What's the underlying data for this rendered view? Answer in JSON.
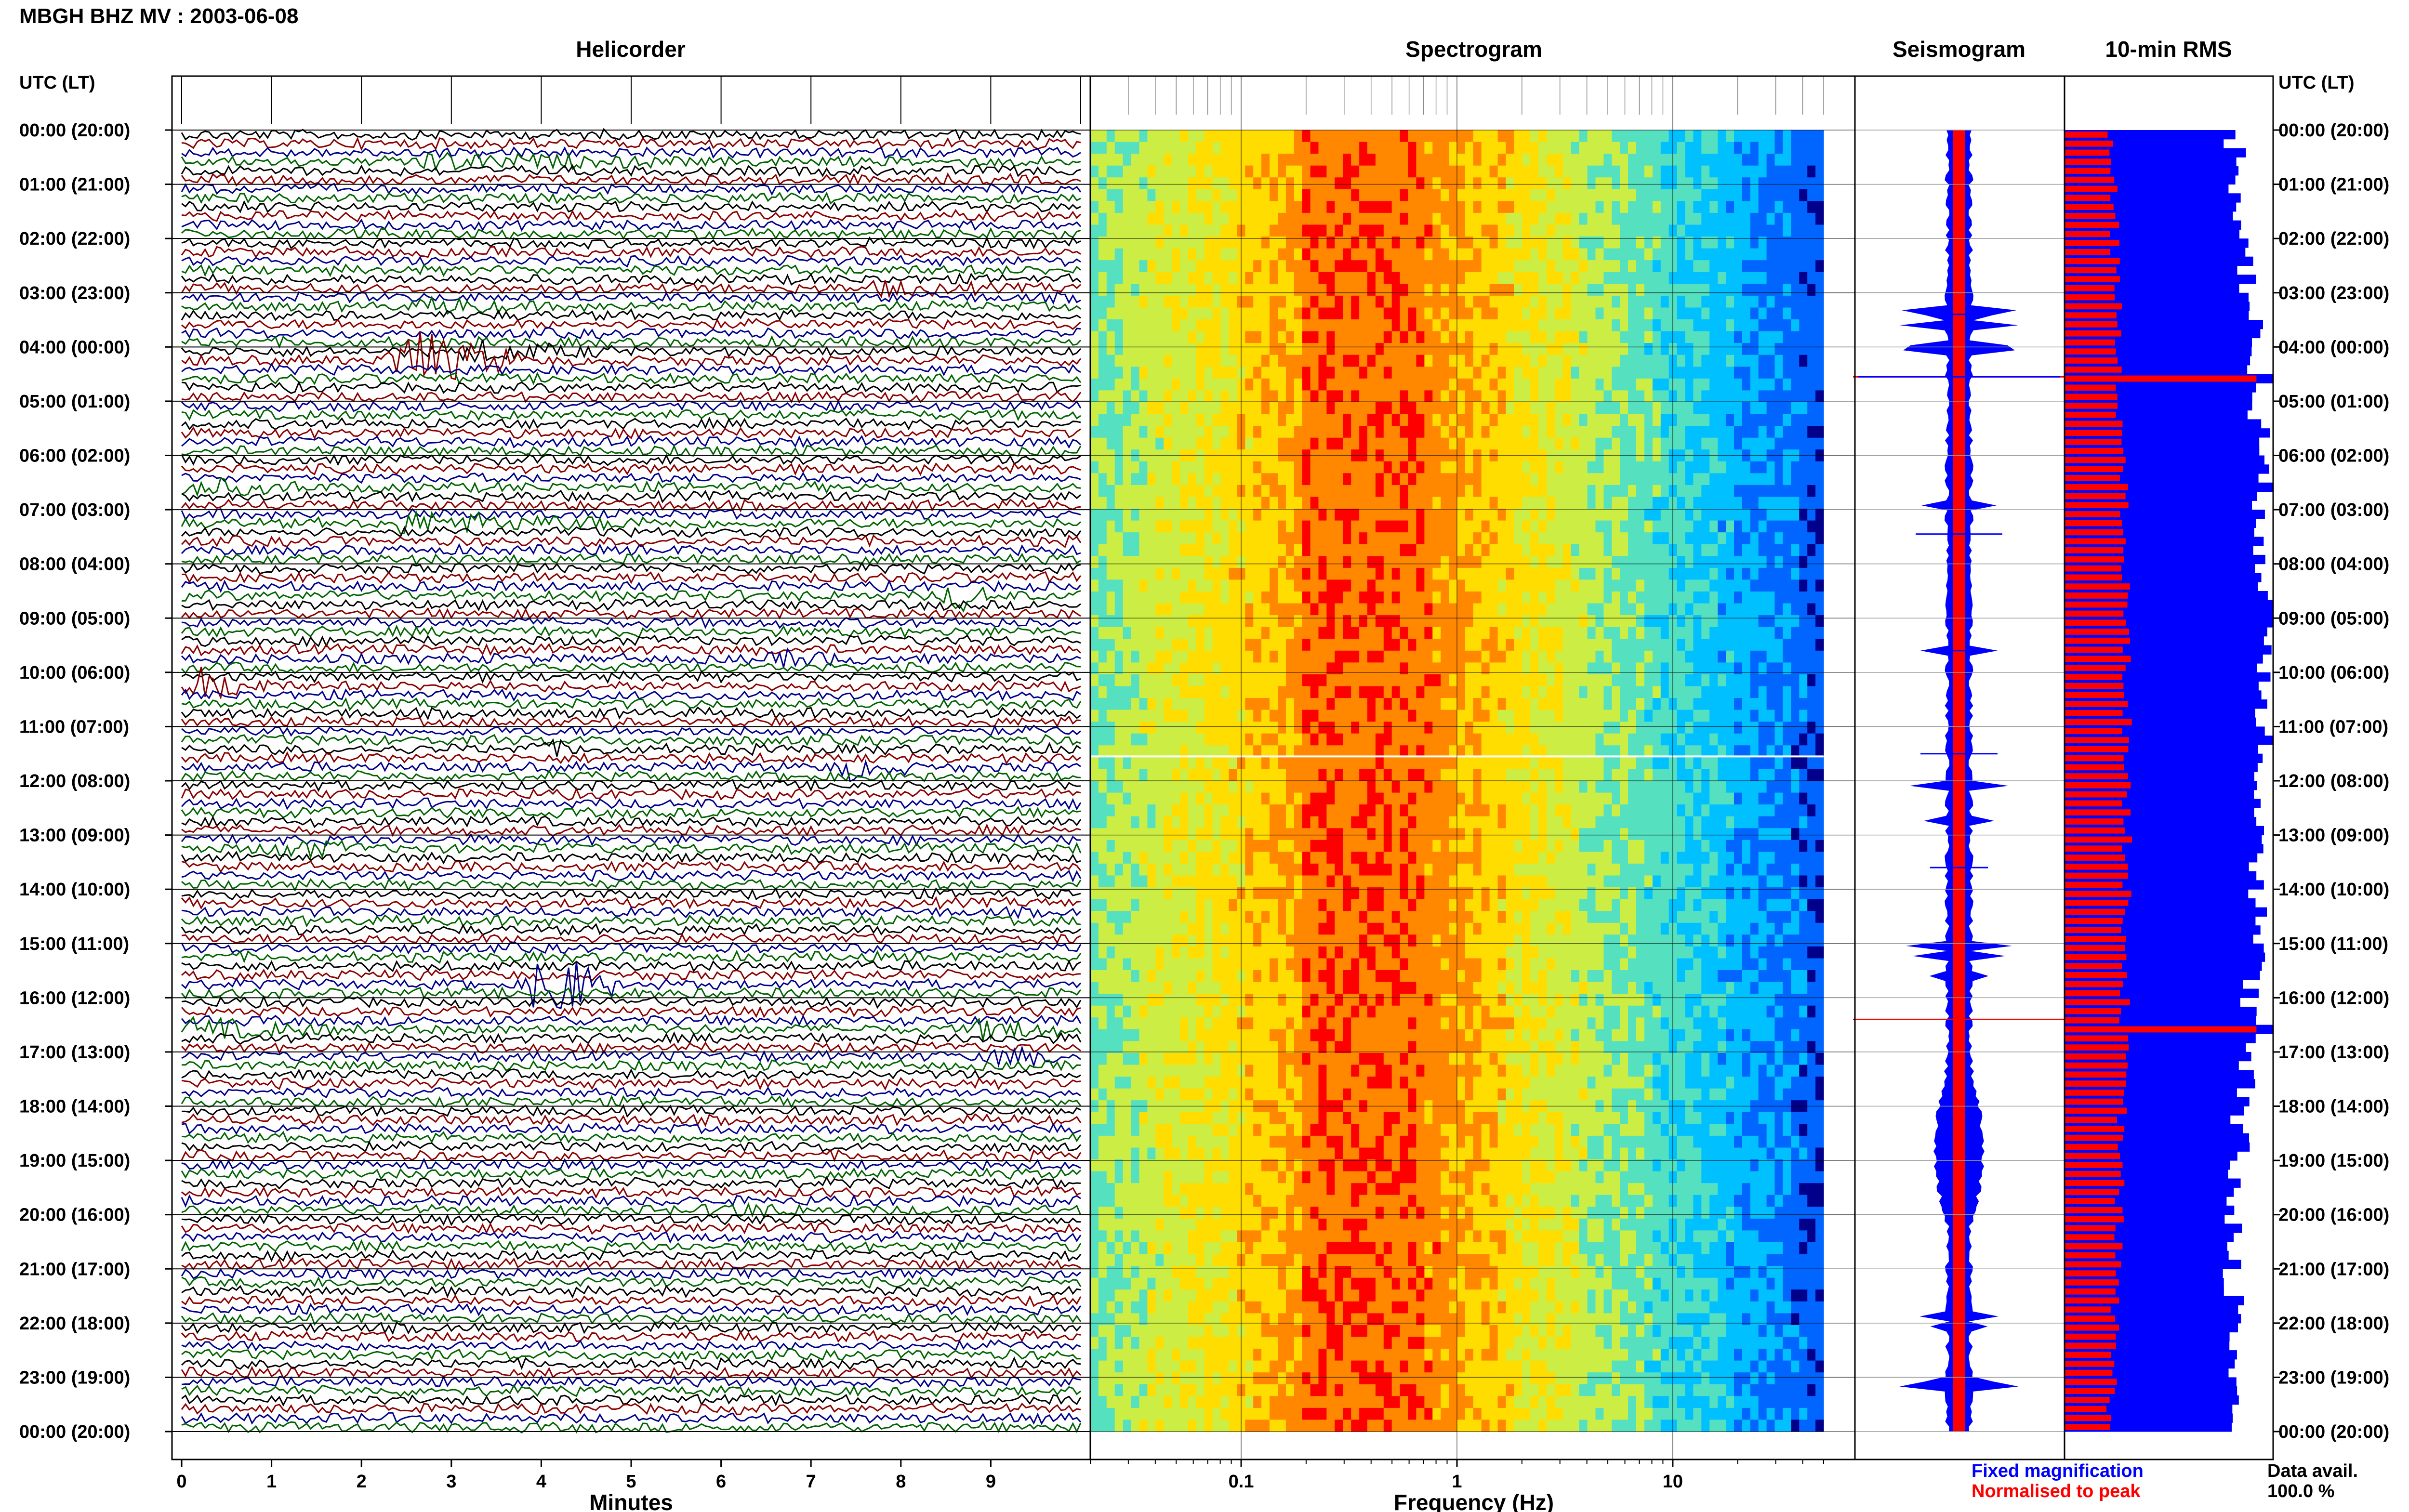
{
  "header": {
    "title": "MBGH BHZ MV : 2003-06-08"
  },
  "panels": {
    "helicorder": "Helicorder",
    "spectrogram": "Spectrogram",
    "seismogram": "Seismogram",
    "rms": "10-min RMS"
  },
  "axis_labels": {
    "left_time": "UTC (LT)",
    "right_time": "UTC (LT)",
    "helicorder_x": "Minutes",
    "spectrogram_x": "Frequency (Hz)"
  },
  "legend": {
    "fixed": "Fixed magnification",
    "normalised": "Normalised to peak",
    "fixed_color": "#0000ff",
    "normalised_color": "#ff0000"
  },
  "data_avail": {
    "label": "Data avail.",
    "value": "100.0 %"
  },
  "colors": {
    "black": "#000000",
    "red": "#8b0000",
    "blue": "#00008b",
    "green": "#006400"
  },
  "chart_data": {
    "type": "heatmap",
    "time_labels": [
      "00:00 (20:00)",
      "01:00 (21:00)",
      "02:00 (22:00)",
      "03:00 (23:00)",
      "04:00 (00:00)",
      "05:00 (01:00)",
      "06:00 (02:00)",
      "07:00 (03:00)",
      "08:00 (04:00)",
      "09:00 (05:00)",
      "10:00 (06:00)",
      "11:00 (07:00)",
      "12:00 (08:00)",
      "13:00 (09:00)",
      "14:00 (10:00)",
      "15:00 (11:00)",
      "16:00 (12:00)",
      "17:00 (13:00)",
      "18:00 (14:00)",
      "19:00 (15:00)",
      "20:00 (16:00)",
      "21:00 (17:00)",
      "22:00 (18:00)",
      "23:00 (19:00)",
      "00:00 (20:00)"
    ],
    "helicorder": {
      "xlabel": "Minutes",
      "xlim": [
        0,
        10
      ],
      "x_ticks": [
        0,
        1,
        2,
        3,
        4,
        5,
        6,
        7,
        8,
        9
      ],
      "rows": 144,
      "trace_colors_cycle": [
        "black",
        "red",
        "blue",
        "green"
      ],
      "events": [
        {
          "hour": 0.6,
          "minute": 2.5,
          "dur": 3.0,
          "amp": 0.6,
          "color": "green"
        },
        {
          "hour": 3.2,
          "minute": 2.7,
          "dur": 1.0,
          "amp": 0.6,
          "color": "black"
        },
        {
          "hour": 2.95,
          "minute": 7.7,
          "dur": 1.2,
          "amp": 0.5,
          "color": "blue"
        },
        {
          "hour": 4.25,
          "minute": 2.35,
          "dur": 1.4,
          "amp": 3.2,
          "color": "green"
        },
        {
          "hour": 4.1,
          "minute": 3.1,
          "dur": 1.8,
          "amp": 0.8,
          "color": "red"
        },
        {
          "hour": 6.6,
          "minute": 0.0,
          "dur": 1.4,
          "amp": 0.7,
          "color": "black"
        },
        {
          "hour": 7.2,
          "minute": 2.3,
          "dur": 3.5,
          "amp": 0.8,
          "color": "black"
        },
        {
          "hour": 8.6,
          "minute": 8.5,
          "dur": 0.6,
          "amp": 1.2,
          "color": "black"
        },
        {
          "hour": 9.8,
          "minute": 6.6,
          "dur": 1.0,
          "amp": 0.6,
          "color": "green"
        },
        {
          "hour": 10.2,
          "minute": 0.1,
          "dur": 0.9,
          "amp": 1.6,
          "color": "blue"
        },
        {
          "hour": 11.4,
          "minute": 3.8,
          "dur": 1.0,
          "amp": 0.5,
          "color": "red"
        },
        {
          "hour": 11.8,
          "minute": 7.3,
          "dur": 0.8,
          "amp": 0.9,
          "color": "green"
        },
        {
          "hour": 13.3,
          "minute": 1.0,
          "dur": 1.0,
          "amp": 0.9,
          "color": "red"
        },
        {
          "hour": 15.7,
          "minute": 3.9,
          "dur": 0.9,
          "amp": 4.0,
          "color": "blue"
        },
        {
          "hour": 16.5,
          "minute": 0.0,
          "dur": 1.8,
          "amp": 0.8,
          "color": "black"
        },
        {
          "hour": 16.6,
          "minute": 8.8,
          "dur": 1.2,
          "amp": 0.8,
          "color": "green"
        },
        {
          "hour": 17.0,
          "minute": 9.0,
          "dur": 1.0,
          "amp": 0.7,
          "color": "red"
        },
        {
          "hour": 19.95,
          "minute": 5.9,
          "dur": 1.2,
          "amp": 0.5,
          "color": "black"
        }
      ]
    },
    "spectrogram": {
      "xlabel": "Frequency (Hz)",
      "x_scale": "log",
      "xlim": [
        0.02,
        50
      ],
      "x_ticks": [
        0.1,
        1,
        10
      ],
      "x_tick_labels": [
        "0.1",
        "1",
        "10"
      ],
      "peak_band_hz": [
        0.2,
        0.6
      ],
      "colormap": [
        "#00008b",
        "#0066ff",
        "#00c0ff",
        "#55e0c0",
        "#ccee44",
        "#ffdd00",
        "#ff8800",
        "#ff0000"
      ]
    },
    "seismogram": {
      "series": [
        {
          "name": "Fixed magnification",
          "color": "#0000ff"
        },
        {
          "name": "Normalised to peak",
          "color": "#ff0000"
        }
      ]
    },
    "rms": {
      "interval_min": 10,
      "series": [
        {
          "name": "Fixed magnification",
          "color": "#0000ff",
          "relative_start_end": [
            0.75,
            0.97
          ]
        },
        {
          "name": "Normalised to peak",
          "color": "#ff0000",
          "relative_start_end": [
            0.22,
            0.3
          ]
        }
      ]
    }
  }
}
